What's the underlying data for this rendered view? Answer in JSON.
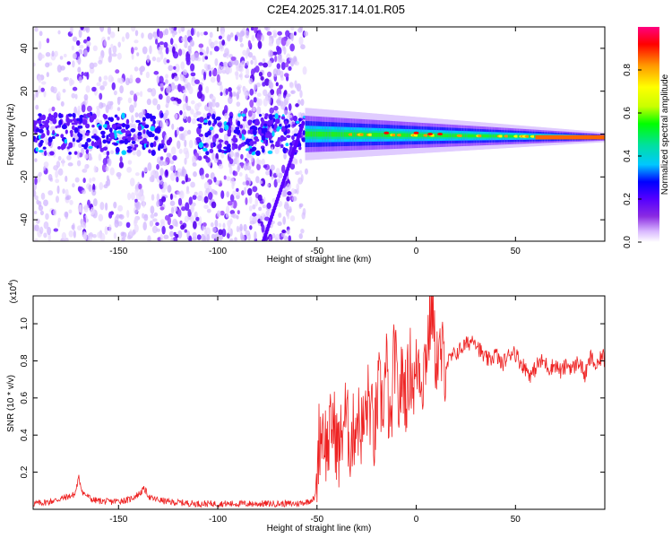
{
  "title": "C2E4.2025.317.14.01.R05",
  "chart_data": [
    {
      "type": "heatmap",
      "xlabel": "Height of straight line (km)",
      "ylabel": "Frequency (Hz)",
      "xlim": [
        -193,
        95
      ],
      "ylim": [
        -50,
        50
      ],
      "xticks": [
        -150,
        -100,
        -50,
        0,
        50
      ],
      "xtick_labels": [
        "-150",
        "-100",
        "-50",
        "0",
        "50"
      ],
      "yticks": [
        -40,
        -20,
        0,
        20,
        40
      ],
      "ytick_labels": [
        "-40",
        "-20",
        "0",
        "20",
        "40"
      ],
      "colorbar": {
        "label": "Normalized spectral amplitude",
        "range": [
          0,
          1
        ],
        "ticks": [
          0.0,
          0.2,
          0.4,
          0.6,
          0.8
        ],
        "tick_labels": [
          "0.0",
          "0.2",
          "0.4",
          "0.6",
          "0.8"
        ],
        "colors": [
          "#ffffff",
          "#d9b8ff",
          "#8a2be2",
          "#5500ff",
          "#0000ff",
          "#00c8ff",
          "#00e0a0",
          "#00ff00",
          "#c8ff00",
          "#ffff00",
          "#ff9900",
          "#ff0000",
          "#ff0080"
        ]
      },
      "grid": false
    },
    {
      "type": "line",
      "xlabel": "Height of straight line (km)",
      "ylabel": "SNR (10 * v/v)",
      "y_multiplier_label": "(x10",
      "y_multiplier_exp": "4",
      "y_multiplier_close": ")",
      "xlim": [
        -193,
        95
      ],
      "ylim": [
        0,
        1.15
      ],
      "xticks": [
        -150,
        -100,
        -50,
        0,
        50
      ],
      "xtick_labels": [
        "-150",
        "-100",
        "-50",
        "0",
        "50"
      ],
      "yticks": [
        0.2,
        0.4,
        0.6,
        0.8,
        1.0
      ],
      "ytick_labels": [
        "0.2",
        "0.4",
        "0.6",
        "0.8",
        "1.0"
      ],
      "line_color": "#ee2222",
      "grid": false,
      "x": [
        -193,
        -185,
        -178,
        -172,
        -170,
        -168,
        -163,
        -155,
        -145,
        -140,
        -137,
        -134,
        -125,
        -110,
        -95,
        -80,
        -70,
        -60,
        -55,
        -51,
        -49,
        -47,
        -45,
        -42,
        -39,
        -36,
        -33,
        -30,
        -27,
        -24,
        -21,
        -19,
        -17,
        -15,
        -13,
        -11,
        -9,
        -7,
        -5,
        -3,
        -1,
        1,
        3,
        5,
        7,
        8,
        9,
        11,
        13,
        15,
        18,
        21,
        24,
        27,
        29,
        31,
        34,
        37,
        40,
        43,
        46,
        49,
        52,
        55,
        58,
        61,
        64,
        67,
        70,
        73,
        76,
        79,
        82,
        85,
        88,
        91,
        94,
        95
      ],
      "y": [
        0.03,
        0.04,
        0.06,
        0.08,
        0.17,
        0.09,
        0.05,
        0.04,
        0.05,
        0.08,
        0.11,
        0.06,
        0.04,
        0.03,
        0.03,
        0.03,
        0.03,
        0.03,
        0.04,
        0.06,
        0.38,
        0.45,
        0.32,
        0.48,
        0.3,
        0.52,
        0.35,
        0.5,
        0.42,
        0.6,
        0.38,
        0.65,
        0.55,
        0.78,
        0.35,
        0.88,
        0.55,
        0.72,
        0.62,
        0.78,
        0.66,
        0.82,
        0.7,
        0.85,
        1.0,
        1.15,
        0.88,
        0.8,
        0.82,
        0.78,
        0.82,
        0.85,
        0.88,
        0.9,
        0.93,
        0.88,
        0.82,
        0.8,
        0.84,
        0.78,
        0.82,
        0.86,
        0.8,
        0.76,
        0.72,
        0.78,
        0.8,
        0.76,
        0.78,
        0.74,
        0.78,
        0.76,
        0.8,
        0.72,
        0.82,
        0.76,
        0.84,
        0.78
      ]
    }
  ]
}
